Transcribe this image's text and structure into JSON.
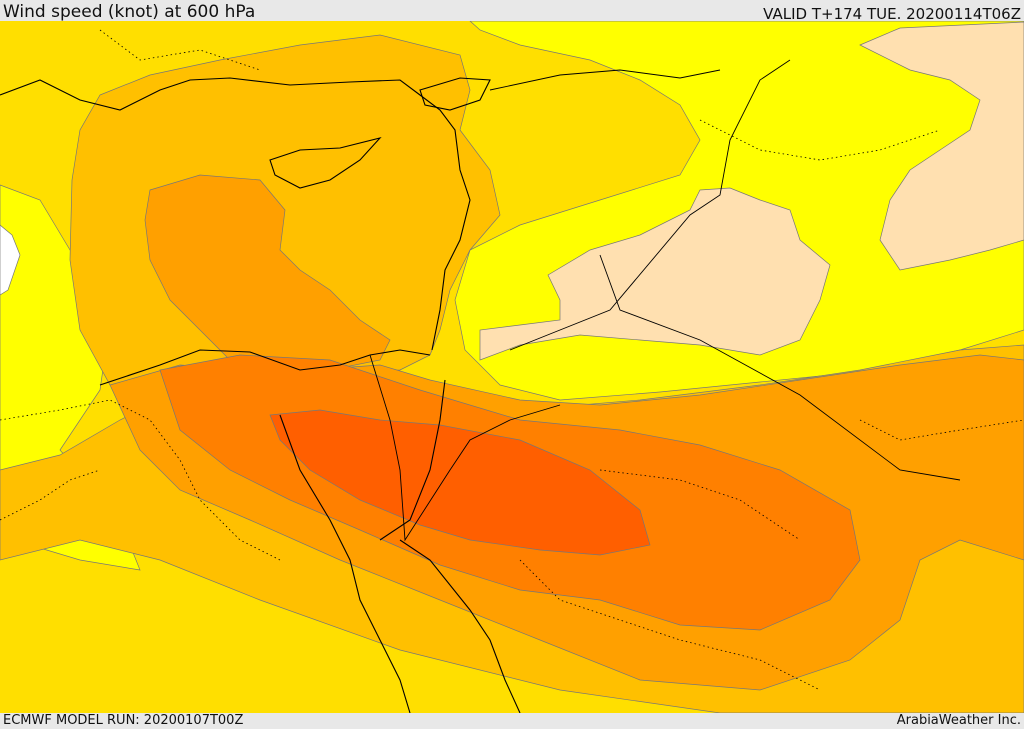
{
  "header": {
    "title": "Wind speed (knot) at 600 hPa",
    "valid": "VALID T+174 TUE. 20200114T06Z"
  },
  "footer": {
    "model_run": "ECMWF MODEL RUN: 20200107T00Z",
    "credit": "ArabiaWeather Inc."
  },
  "colors": {
    "level_1": "#FFFF00",
    "level_2": "#FFDF00",
    "level_3": "#FFC000",
    "level_4": "#FFA000",
    "level_5": "#FF8000",
    "level_6": "#FF5F00",
    "low_wind": "#FFE0B0",
    "sea_gap": "#FFFFFF"
  }
}
